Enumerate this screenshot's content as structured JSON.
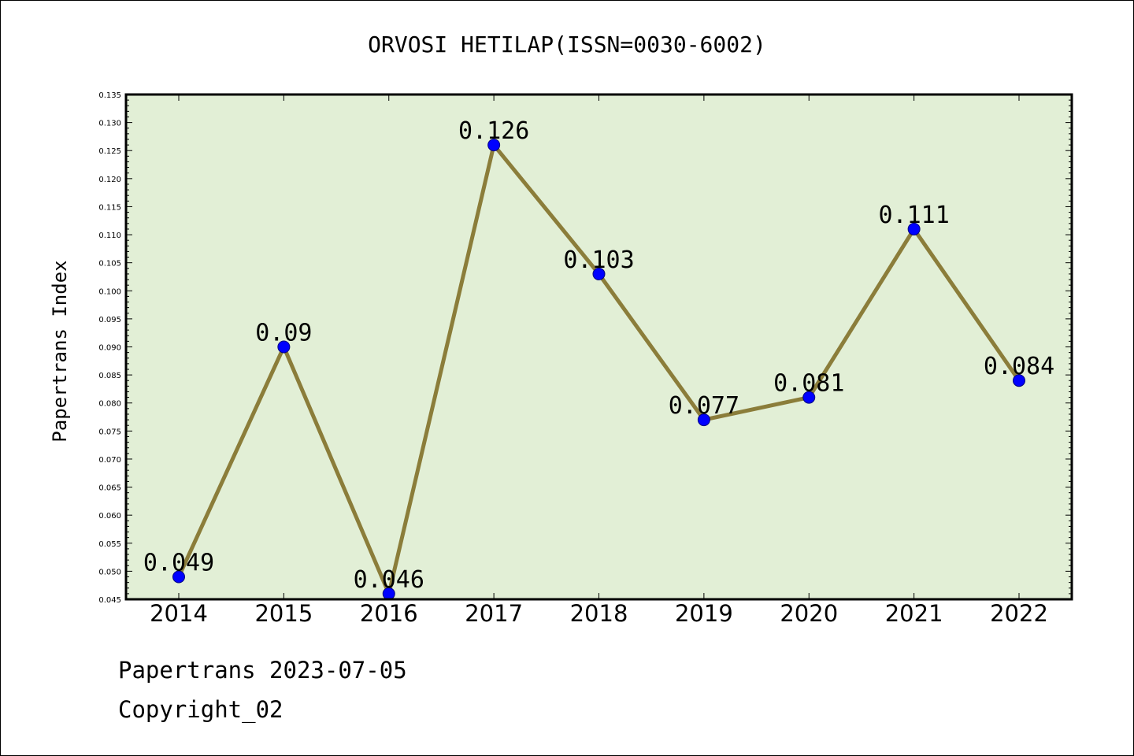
{
  "chart_data": {
    "type": "line",
    "title": "ORVOSI HETILAP(ISSN=0030-6002)",
    "ylabel": "Papertrans Index",
    "xlabel": "",
    "categories": [
      "2014",
      "2015",
      "2016",
      "2017",
      "2018",
      "2019",
      "2020",
      "2021",
      "2022"
    ],
    "series": [
      {
        "values": [
          0.049,
          0.09,
          0.046,
          0.126,
          0.103,
          0.077,
          0.081,
          0.111,
          0.084
        ]
      }
    ],
    "data_labels": [
      "0.049",
      "0.09",
      "0.046",
      "0.126",
      "0.103",
      "0.077",
      "0.081",
      "0.111",
      "0.084"
    ],
    "ylim": [
      0.045,
      0.135
    ],
    "y_major_step": 0.005,
    "y_tick_labels": [
      "0.045",
      "0.050",
      "0.055",
      "0.060",
      "0.065",
      "0.070",
      "0.075",
      "0.080",
      "0.085",
      "0.090",
      "0.095",
      "0.100",
      "0.105",
      "0.110",
      "0.115",
      "0.120",
      "0.125",
      "0.130",
      "0.135"
    ],
    "grid": false,
    "legend": "none",
    "colors": {
      "plot_background": "#e2efd6",
      "line": "#8b7d3a",
      "marker_fill": "#0000ff",
      "marker_edge": "#000080"
    }
  },
  "footer": {
    "line1": "Papertrans 2023-07-05",
    "line2": "Copyright_02"
  }
}
